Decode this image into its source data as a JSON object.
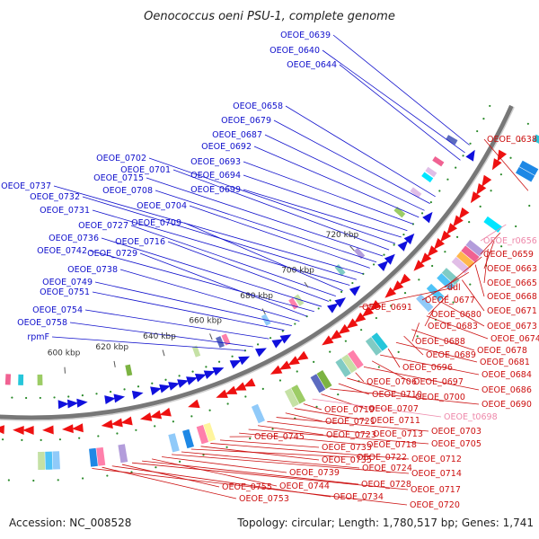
{
  "title": "Oenococcus oeni PSU-1, complete genome",
  "accession": "Accession: NC_008528",
  "topology": "Topology: circular; Length: 1,780,517 bp; Genes: 1,741",
  "colors": {
    "forward_label": "#1010cc",
    "reverse_label": "#cc1010",
    "rna_label": "#ee88aa",
    "backbone": "#777777",
    "forward_arrow": "#1010dd",
    "reverse_arrow": "#ee1111",
    "tick_dot": "#2a8a2a"
  },
  "scale_marks": [
    {
      "label": "600 kbp"
    },
    {
      "label": "620 kbp"
    },
    {
      "label": "640 kbp"
    },
    {
      "label": "660 kbp"
    },
    {
      "label": "680 kbp"
    },
    {
      "label": "700 kbp"
    },
    {
      "label": "720 kbp"
    }
  ],
  "forward_labels": [
    "OEOE_0639",
    "OEOE_0640",
    "OEOE_0644",
    "OEOE_0658",
    "OEOE_0679",
    "OEOE_0687",
    "OEOE_0692",
    "OEOE_0693",
    "OEOE_0694",
    "OEOE_0699",
    "OEOE_0702",
    "OEOE_0701",
    "OEOE_0715",
    "OEOE_0708",
    "OEOE_0704",
    "OEOE_0737",
    "OEOE_0732",
    "OEOE_0731",
    "OEOE_0709",
    "OEOE_0727",
    "OEOE_0716",
    "OEOE_0736",
    "OEOE_0742",
    "OEOE_0729",
    "OEOE_0738",
    "OEOE_0749",
    "OEOE_0751",
    "OEOE_0754",
    "OEOE_0758",
    "rpmF"
  ],
  "reverse_labels": [
    "OEOE_0638",
    "OEOE_r0656",
    "OEOE_0659",
    "OEOE_0663",
    "OEOE_0665",
    "ddl",
    "OEOE_0668",
    "OEOE_0677",
    "OEOE_0671",
    "OEOE_0691",
    "OEOE_0680",
    "OEOE_0673",
    "OEOE_0683",
    "OEOE_0674",
    "OEOE_0688",
    "OEOE_0678",
    "OEOE_0689",
    "OEOE_0681",
    "OEOE_0696",
    "OEOE_0684",
    "OEOE_0697",
    "OEOE_0686",
    "OEOE_0706",
    "OEOE_0700",
    "OEOE_0710",
    "OEOE_0690",
    "OEOE_0707",
    "OEOE_t0698",
    "OEOE_0719",
    "OEOE_0711",
    "OEOE_0721",
    "OEOE_0703",
    "OEOE_0713",
    "OEOE_0723",
    "OEOE_0705",
    "OEOE_0718",
    "OEOE_0745",
    "OEOE_0733",
    "OEOE_0712",
    "OEOE_0735",
    "OEOE_0722",
    "OEOE_0724",
    "OEOE_0714",
    "OEOE_0739",
    "OEOE_0744",
    "OEOE_0728",
    "OEOE_0717",
    "OEOE_0755",
    "OEOE_0734",
    "OEOE_0753",
    "OEOE_0720"
  ]
}
